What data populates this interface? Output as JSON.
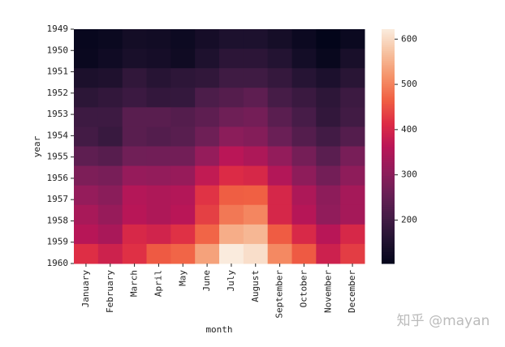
{
  "chart_data": {
    "type": "heatmap",
    "x_label": "month",
    "y_label": "year",
    "categories": [
      "January",
      "February",
      "March",
      "April",
      "May",
      "June",
      "July",
      "August",
      "September",
      "October",
      "November",
      "December"
    ],
    "rows": [
      "1949",
      "1950",
      "1951",
      "1952",
      "1953",
      "1954",
      "1955",
      "1956",
      "1957",
      "1958",
      "1959",
      "1960"
    ],
    "values": [
      [
        112,
        118,
        132,
        129,
        121,
        135,
        148,
        148,
        136,
        119,
        104,
        118
      ],
      [
        115,
        126,
        141,
        135,
        125,
        149,
        170,
        170,
        158,
        133,
        114,
        140
      ],
      [
        145,
        150,
        178,
        163,
        172,
        178,
        199,
        199,
        184,
        162,
        146,
        166
      ],
      [
        171,
        180,
        193,
        181,
        183,
        218,
        230,
        242,
        209,
        191,
        172,
        194
      ],
      [
        196,
        196,
        236,
        235,
        229,
        243,
        264,
        272,
        237,
        211,
        180,
        201
      ],
      [
        204,
        188,
        235,
        227,
        234,
        264,
        302,
        293,
        259,
        229,
        203,
        229
      ],
      [
        242,
        233,
        267,
        269,
        270,
        315,
        364,
        347,
        312,
        274,
        237,
        278
      ],
      [
        284,
        277,
        317,
        313,
        318,
        374,
        413,
        405,
        355,
        306,
        271,
        306
      ],
      [
        315,
        301,
        356,
        348,
        355,
        422,
        465,
        467,
        404,
        347,
        305,
        336
      ],
      [
        340,
        318,
        362,
        348,
        363,
        435,
        491,
        505,
        404,
        359,
        310,
        337
      ],
      [
        360,
        342,
        406,
        396,
        420,
        472,
        548,
        559,
        463,
        407,
        362,
        405
      ],
      [
        417,
        391,
        419,
        461,
        472,
        535,
        622,
        606,
        508,
        461,
        390,
        432
      ]
    ],
    "zlim": [
      104,
      622
    ],
    "zticks": [
      200,
      300,
      400,
      500,
      600
    ],
    "colormap": [
      "#03051A",
      "#221331",
      "#451C47",
      "#6A1F56",
      "#921C5B",
      "#B91657",
      "#DD2C45",
      "#F06043",
      "#F5936A",
      "#F6C19F",
      "#FAEBDD"
    ],
    "watermark": "知乎 @mayan"
  }
}
